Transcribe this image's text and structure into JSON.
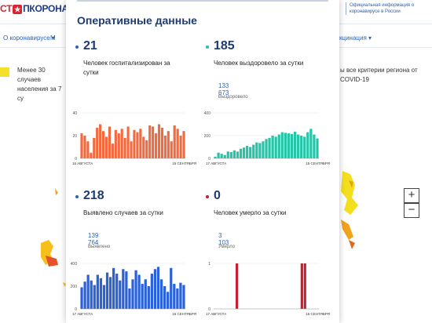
{
  "header": {
    "logo_left": "СТ",
    "logo_star": "★",
    "logo_right": "ПКОРОНАВИ",
    "official_text": "Официальная информация о коронавирусе в России"
  },
  "nav": {
    "about_label": "О коронавирусе ▾",
    "m_label": "М",
    "vaccination_label": "кцинация ▾"
  },
  "legend": {
    "left_text": "Менее 30 случаев населения за 7 су",
    "right_text": "ы все критерии региона от COVID-19"
  },
  "zoom": {
    "in": "+",
    "out": "−"
  },
  "panel": {
    "title": "Оперативные данные",
    "stats": [
      {
        "number": "21",
        "label": "Человек госпитализирован за сутки",
        "total": "",
        "sub": "",
        "dot_color": "#2c64b8"
      },
      {
        "number": "185",
        "label": "Человек выздоровело за сутки",
        "total": "133 673",
        "sub": "Выздоровело",
        "dot_color": "#26c1a8"
      },
      {
        "number": "218",
        "label": "Выявлено случаев за сутки",
        "total": "139 764",
        "sub": "Выявлено",
        "dot_color": "#2c64b8"
      },
      {
        "number": "0",
        "label": "Человек умерло за сутки",
        "total": "3 103",
        "sub": "Умерло",
        "dot_color": "#c8202f"
      }
    ]
  },
  "chart_data": [
    {
      "type": "bar",
      "color": "#f26a3f",
      "yticks": [
        "40",
        "20",
        "0"
      ],
      "ylim": [
        0,
        40
      ],
      "xstart": "16 АВГУСТА",
      "xend": "15 СЕНТЯБРЯ",
      "values": [
        22,
        20,
        15,
        5,
        18,
        27,
        30,
        24,
        19,
        28,
        13,
        25,
        22,
        26,
        18,
        28,
        15,
        25,
        23,
        26,
        19,
        16,
        29,
        28,
        22,
        30,
        27,
        20,
        24,
        15,
        29,
        26,
        20,
        24
      ]
    },
    {
      "type": "bar",
      "color": "#27c4a8",
      "yticks": [
        "400",
        "200",
        "0"
      ],
      "ylim": [
        0,
        400
      ],
      "xstart": "17 АВГУСТА",
      "xend": "15 СЕНТЯБРЯ",
      "values": [
        15,
        50,
        40,
        30,
        60,
        55,
        70,
        60,
        85,
        95,
        110,
        100,
        120,
        140,
        135,
        150,
        170,
        180,
        200,
        190,
        210,
        230,
        225,
        220,
        215,
        235,
        210,
        200,
        190,
        230,
        260,
        210,
        175
      ]
    },
    {
      "type": "bar",
      "color": "#2c62d8",
      "yticks": [
        "400",
        "200",
        "0"
      ],
      "ylim": [
        0,
        400
      ],
      "xstart": "17 АВГУСТА",
      "xend": "15 СЕНТЯБРЯ",
      "values": [
        190,
        240,
        300,
        250,
        210,
        300,
        270,
        210,
        320,
        280,
        360,
        310,
        250,
        350,
        330,
        180,
        260,
        340,
        300,
        220,
        260,
        200,
        310,
        350,
        370,
        260,
        200,
        150,
        360,
        220,
        180,
        230,
        210
      ]
    },
    {
      "type": "bar",
      "color": "#c51f30",
      "yticks": [
        "1",
        "0"
      ],
      "ylim": [
        0,
        1
      ],
      "xstart": "17 АВГУСТА",
      "xend": "15 СЕНТЯБРЯ",
      "values": [
        0,
        0,
        0,
        0,
        0,
        0,
        0,
        1,
        0,
        0,
        0,
        0,
        0,
        0,
        0,
        0,
        0,
        0,
        0,
        0,
        0,
        0,
        0,
        0,
        0,
        0,
        0,
        0,
        1,
        1,
        0,
        0,
        0,
        0
      ]
    }
  ]
}
